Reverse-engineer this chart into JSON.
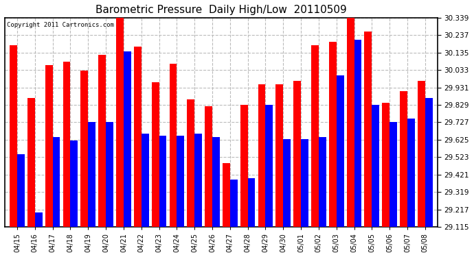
{
  "title": "Barometric Pressure  Daily High/Low  20110509",
  "copyright": "Copyright 2011 Cartronics.com",
  "categories": [
    "04/15",
    "04/16",
    "04/17",
    "04/18",
    "04/19",
    "04/20",
    "04/21",
    "04/22",
    "04/23",
    "04/24",
    "04/25",
    "04/26",
    "04/27",
    "04/28",
    "04/29",
    "04/30",
    "05/01",
    "05/02",
    "05/03",
    "05/04",
    "05/05",
    "05/06",
    "05/07",
    "05/08"
  ],
  "highs": [
    30.18,
    29.87,
    30.06,
    30.08,
    30.03,
    30.12,
    30.34,
    30.17,
    29.96,
    30.07,
    29.86,
    29.82,
    29.49,
    29.83,
    29.95,
    29.95,
    29.97,
    30.18,
    30.2,
    30.34,
    30.26,
    29.84,
    29.91,
    29.97
  ],
  "lows": [
    29.54,
    29.2,
    29.64,
    29.62,
    29.73,
    29.73,
    30.14,
    29.66,
    29.65,
    29.65,
    29.66,
    29.64,
    29.39,
    29.4,
    29.83,
    29.63,
    29.63,
    29.64,
    30.0,
    30.21,
    29.83,
    29.73,
    29.75,
    29.87
  ],
  "high_color": "#ff0000",
  "low_color": "#0000ff",
  "bg_color": "#ffffff",
  "grid_color": "#bbbbbb",
  "ymin": 29.115,
  "ymax": 30.339,
  "yticks": [
    29.115,
    29.217,
    29.319,
    29.421,
    29.523,
    29.625,
    29.727,
    29.829,
    29.931,
    30.033,
    30.135,
    30.237,
    30.339
  ],
  "bar_width": 0.42,
  "title_fontsize": 11,
  "tick_fontsize": 7.5,
  "xlabel_fontsize": 7
}
